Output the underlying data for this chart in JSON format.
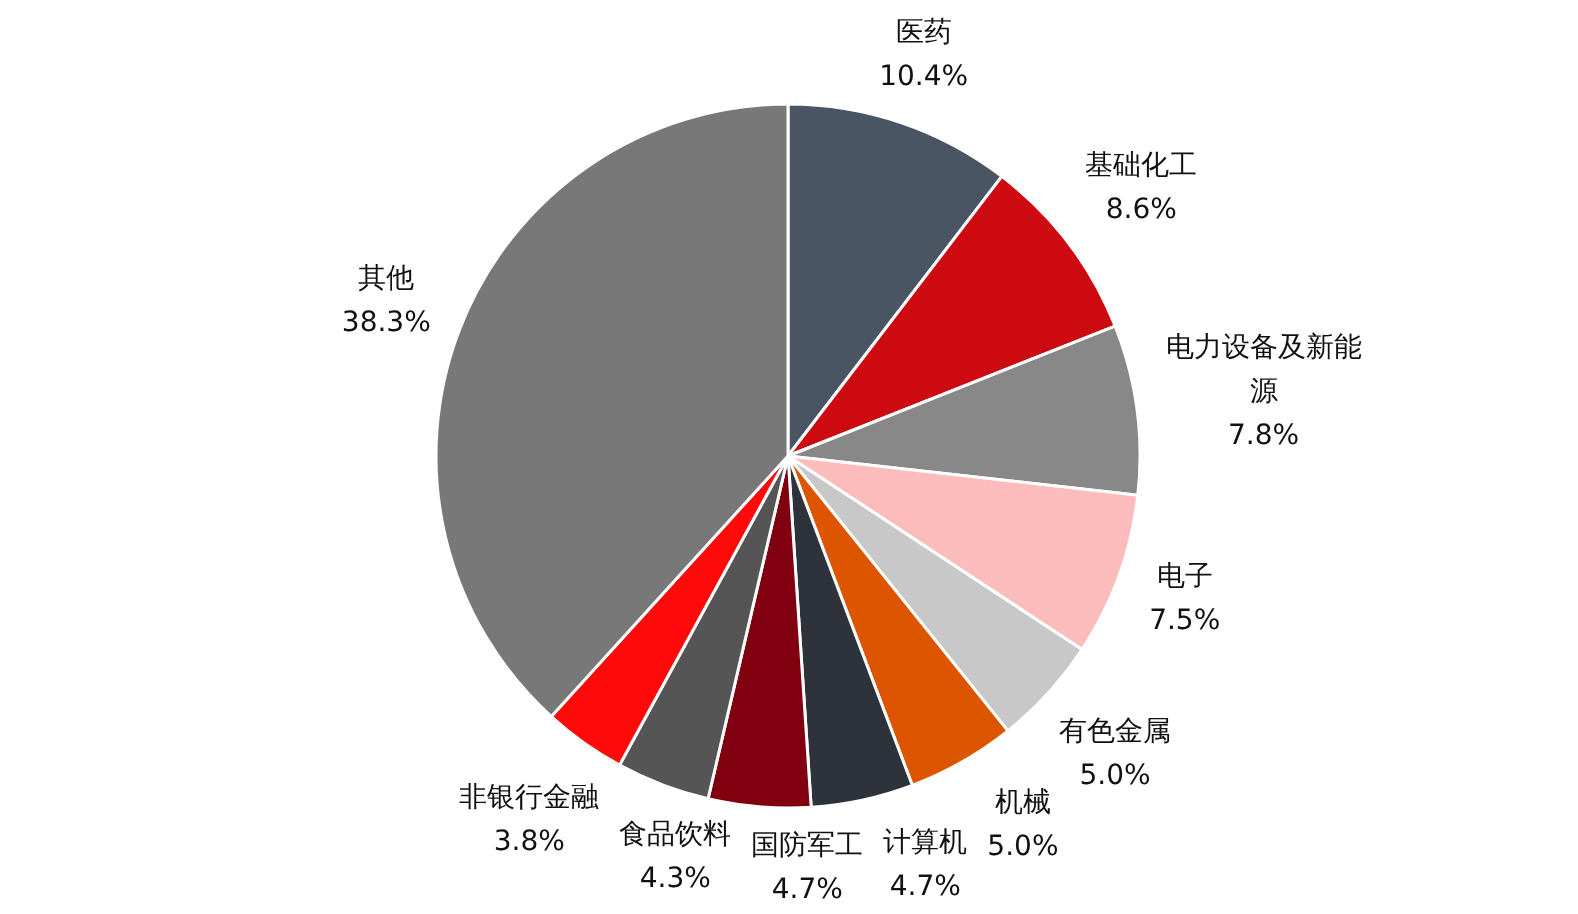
{
  "chart_data": {
    "type": "pie",
    "categories": [
      "医药",
      "基础化工",
      "电力设备及新能源",
      "电子",
      "有色金属",
      "机械",
      "计算机",
      "国防军工",
      "食品饮料",
      "非银行金融",
      "其他"
    ],
    "values": [
      10.4,
      8.6,
      7.8,
      7.5,
      5.0,
      5.0,
      4.7,
      4.7,
      4.3,
      3.8,
      38.3
    ],
    "value_labels": [
      "10.4%",
      "8.6%",
      "7.8%",
      "7.5%",
      "5.0%",
      "5.0%",
      "4.7%",
      "4.7%",
      "4.3%",
      "3.8%",
      "38.3%"
    ],
    "colors": [
      "#4a5563",
      "#cc0a10",
      "#888888",
      "#fdbcbc",
      "#c8c8c8",
      "#dd5500",
      "#2e333b",
      "#800010",
      "#555555",
      "#ff0a0a",
      "#787878"
    ]
  }
}
